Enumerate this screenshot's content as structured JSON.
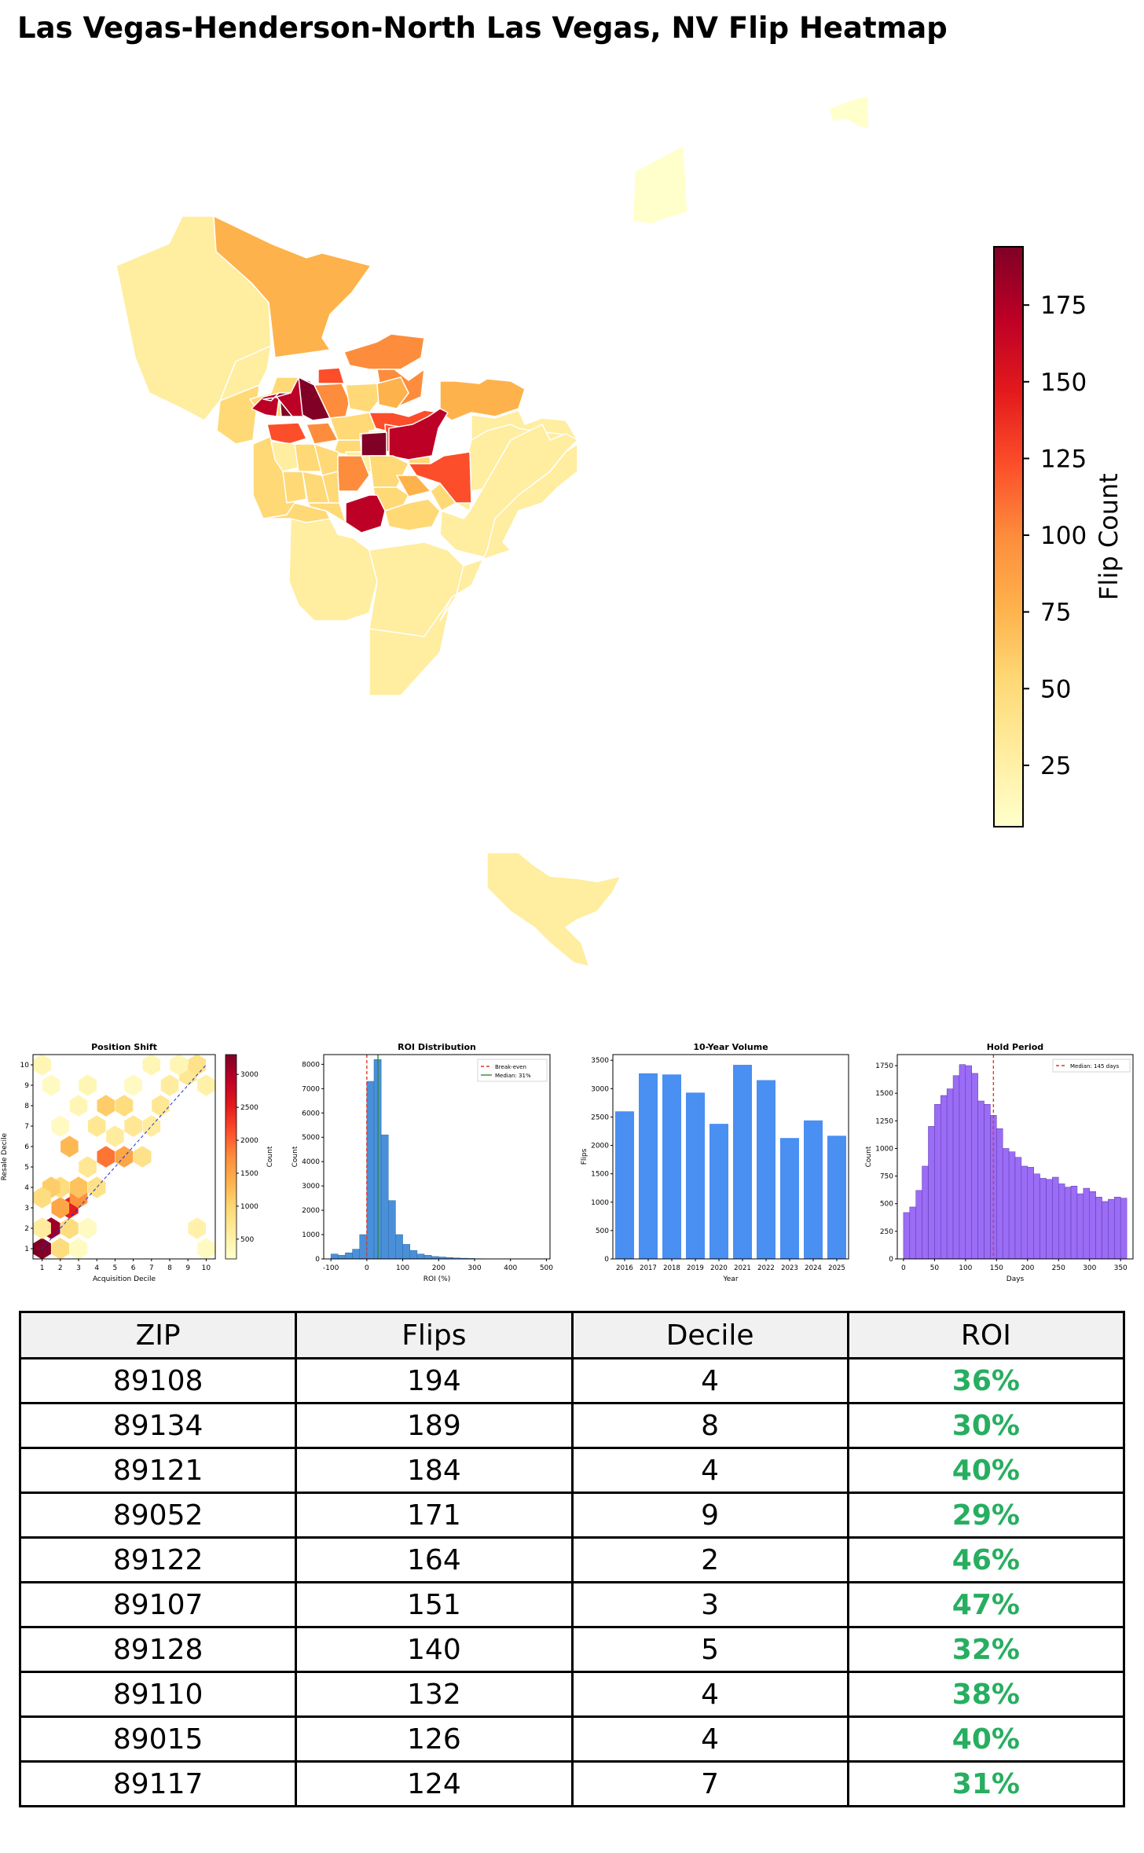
{
  "title": "Las Vegas-Henderson-North Las Vegas, NV Flip Heatmap",
  "map": {
    "colorbar_label": "Flip Count",
    "colorbar_ticks": [
      "25",
      "50",
      "75",
      "100",
      "125",
      "150",
      "175"
    ],
    "colorbar_range": [
      5,
      194
    ],
    "colormap": [
      "#ffffcc",
      "#ffeda0",
      "#fed976",
      "#feb24c",
      "#fd8d3c",
      "#fc4e2a",
      "#e31a1c",
      "#bd0026",
      "#800026"
    ]
  },
  "chart_data": [
    {
      "type": "heatmap",
      "title": "Position Shift",
      "xlabel": "Acquisition Decile",
      "ylabel": "Resale Decile",
      "colorbar_label": "Count",
      "xticks": [
        "1",
        "2",
        "3",
        "4",
        "5",
        "6",
        "7",
        "8",
        "9",
        "10"
      ],
      "yticks": [
        "1",
        "2",
        "3",
        "4",
        "5",
        "6",
        "7",
        "8",
        "9",
        "10"
      ],
      "colorbar_ticks": [
        "500",
        "1000",
        "1500",
        "2000",
        "2500",
        "3000"
      ],
      "cells": [
        {
          "x": 1,
          "y": 1,
          "v": 3300
        },
        {
          "x": 1.5,
          "y": 2,
          "v": 3100
        },
        {
          "x": 2,
          "y": 1,
          "v": 900
        },
        {
          "x": 1,
          "y": 2,
          "v": 600
        },
        {
          "x": 2.5,
          "y": 3,
          "v": 2500
        },
        {
          "x": 2,
          "y": 3,
          "v": 1500
        },
        {
          "x": 3,
          "y": 3.5,
          "v": 1700
        },
        {
          "x": 2.5,
          "y": 2,
          "v": 900
        },
        {
          "x": 3,
          "y": 4,
          "v": 1200
        },
        {
          "x": 2,
          "y": 4,
          "v": 900
        },
        {
          "x": 1.5,
          "y": 4,
          "v": 1100
        },
        {
          "x": 1,
          "y": 3.5,
          "v": 900
        },
        {
          "x": 3.5,
          "y": 5,
          "v": 700
        },
        {
          "x": 4,
          "y": 4,
          "v": 800
        },
        {
          "x": 3,
          "y": 1,
          "v": 300
        },
        {
          "x": 3.5,
          "y": 2,
          "v": 300
        },
        {
          "x": 4.5,
          "y": 5.5,
          "v": 1900
        },
        {
          "x": 5.5,
          "y": 5.5,
          "v": 1500
        },
        {
          "x": 2.5,
          "y": 6,
          "v": 1300
        },
        {
          "x": 6.5,
          "y": 5.5,
          "v": 800
        },
        {
          "x": 5,
          "y": 6.5,
          "v": 600
        },
        {
          "x": 4,
          "y": 7,
          "v": 700
        },
        {
          "x": 4.5,
          "y": 8,
          "v": 1100
        },
        {
          "x": 5.5,
          "y": 8,
          "v": 900
        },
        {
          "x": 6,
          "y": 7,
          "v": 700
        },
        {
          "x": 7,
          "y": 7,
          "v": 600
        },
        {
          "x": 7.5,
          "y": 8,
          "v": 700
        },
        {
          "x": 8,
          "y": 9,
          "v": 600
        },
        {
          "x": 9,
          "y": 9.5,
          "v": 700
        },
        {
          "x": 9.5,
          "y": 10,
          "v": 800
        },
        {
          "x": 10,
          "y": 9,
          "v": 500
        },
        {
          "x": 8.5,
          "y": 10,
          "v": 400
        },
        {
          "x": 3,
          "y": 8,
          "v": 400
        },
        {
          "x": 2,
          "y": 7,
          "v": 300
        },
        {
          "x": 1.5,
          "y": 9,
          "v": 300
        },
        {
          "x": 1,
          "y": 10,
          "v": 400
        },
        {
          "x": 3.5,
          "y": 9,
          "v": 400
        },
        {
          "x": 6,
          "y": 9,
          "v": 300
        },
        {
          "x": 7,
          "y": 10,
          "v": 400
        },
        {
          "x": 9.5,
          "y": 2,
          "v": 500
        },
        {
          "x": 10,
          "y": 1,
          "v": 300
        }
      ]
    },
    {
      "type": "bar",
      "title": "ROI Distribution",
      "xlabel": "ROI (%)",
      "ylabel": "Count",
      "xlim": [
        -120,
        510
      ],
      "ylim": [
        0,
        8400
      ],
      "xticks": [
        "-100",
        "0",
        "100",
        "200",
        "300",
        "400",
        "500"
      ],
      "yticks": [
        "0",
        "1000",
        "2000",
        "3000",
        "4000",
        "5000",
        "6000",
        "7000",
        "8000"
      ],
      "bin_width": 20,
      "bin_starts": [
        -100,
        -80,
        -60,
        -40,
        -20,
        0,
        20,
        40,
        60,
        80,
        100,
        120,
        140,
        160,
        180,
        200,
        220,
        240,
        260,
        280,
        300
      ],
      "values": [
        200,
        150,
        250,
        400,
        1000,
        7300,
        8200,
        5100,
        2400,
        1000,
        600,
        350,
        200,
        150,
        100,
        80,
        60,
        40,
        30,
        20,
        10
      ],
      "lines": [
        {
          "name": "Break-even",
          "x": 0,
          "color": "#e0382c"
        },
        {
          "name": "Median: 31%",
          "x": 31,
          "color": "#2e8b3c"
        }
      ]
    },
    {
      "type": "bar",
      "title": "10-Year Volume",
      "xlabel": "Year",
      "ylabel": "Flips",
      "categories": [
        "2016",
        "2017",
        "2018",
        "2019",
        "2020",
        "2021",
        "2022",
        "2023",
        "2024",
        "2025"
      ],
      "values": [
        2600,
        3270,
        3250,
        2930,
        2380,
        3420,
        3150,
        2130,
        2440,
        2170
      ],
      "ylim": [
        0,
        3600
      ],
      "yticks": [
        "0",
        "500",
        "1000",
        "1500",
        "2000",
        "2500",
        "3000",
        "3500"
      ]
    },
    {
      "type": "bar",
      "title": "Hold Period",
      "xlabel": "Days",
      "ylabel": "Count",
      "xlim": [
        -10,
        370
      ],
      "ylim": [
        0,
        1850
      ],
      "xticks": [
        "0",
        "50",
        "100",
        "150",
        "200",
        "250",
        "300",
        "350"
      ],
      "yticks": [
        "0",
        "250",
        "500",
        "750",
        "1000",
        "1250",
        "1500",
        "1750"
      ],
      "bin_width": 10,
      "bin_starts": [
        0,
        10,
        20,
        30,
        40,
        50,
        60,
        70,
        80,
        90,
        100,
        110,
        120,
        130,
        140,
        150,
        160,
        170,
        180,
        190,
        200,
        210,
        220,
        230,
        240,
        250,
        260,
        270,
        280,
        290,
        300,
        310,
        320,
        330,
        340,
        350
      ],
      "values": [
        420,
        470,
        620,
        840,
        1200,
        1400,
        1480,
        1540,
        1660,
        1760,
        1750,
        1680,
        1430,
        1400,
        1300,
        1180,
        1000,
        970,
        920,
        840,
        830,
        770,
        730,
        720,
        740,
        680,
        650,
        660,
        590,
        640,
        610,
        560,
        520,
        540,
        560,
        550
      ],
      "lines": [
        {
          "name": "Median: 145 days",
          "x": 145,
          "color": "#e0382c"
        }
      ]
    },
    {
      "type": "table",
      "columns": [
        "ZIP",
        "Flips",
        "Decile",
        "ROI"
      ],
      "rows": [
        [
          "89108",
          "194",
          "4",
          "36%"
        ],
        [
          "89134",
          "189",
          "8",
          "30%"
        ],
        [
          "89121",
          "184",
          "4",
          "40%"
        ],
        [
          "89052",
          "171",
          "9",
          "29%"
        ],
        [
          "89122",
          "164",
          "2",
          "46%"
        ],
        [
          "89107",
          "151",
          "3",
          "47%"
        ],
        [
          "89128",
          "140",
          "5",
          "32%"
        ],
        [
          "89110",
          "132",
          "4",
          "38%"
        ],
        [
          "89015",
          "126",
          "4",
          "40%"
        ],
        [
          "89117",
          "124",
          "7",
          "31%"
        ]
      ]
    }
  ]
}
